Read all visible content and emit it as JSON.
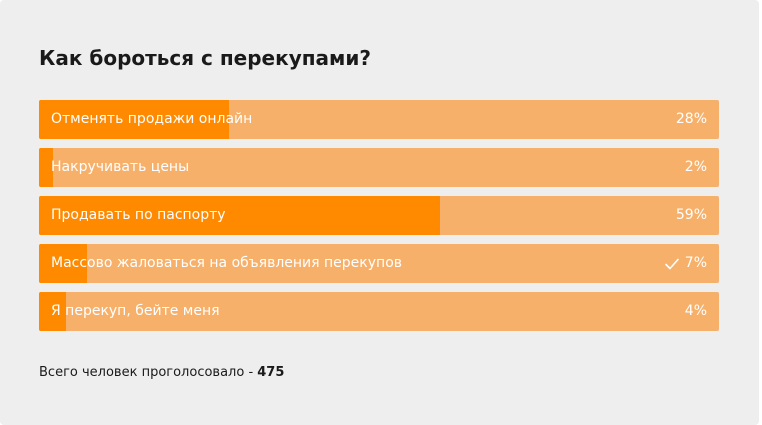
{
  "poll": {
    "title": "Как бороться с перекупами?",
    "options": [
      {
        "label": "Отменять продажи онлайн",
        "percent_text": "28%",
        "fill_fraction": 0.28,
        "selected": false
      },
      {
        "label": "Накручивать цены",
        "percent_text": "2%",
        "fill_fraction": 0.02,
        "selected": false
      },
      {
        "label": "Продавать по паспорту",
        "percent_text": "59%",
        "fill_fraction": 0.59,
        "selected": false
      },
      {
        "label": "Массово жаловаться на объявления перекупов",
        "percent_text": "7%",
        "fill_fraction": 0.07,
        "selected": true
      },
      {
        "label": "Я перекуп, бейте меня",
        "percent_text": "4%",
        "fill_fraction": 0.04,
        "selected": false
      }
    ],
    "footer": {
      "label": "Всего человек проголосовало - ",
      "count": "475"
    }
  },
  "colors": {
    "panel_bg": "#eeeeee",
    "bar_bg": "#f6b06a",
    "bar_fill": "#ff8a00",
    "bar_text": "#ffffff"
  },
  "icons": {
    "selected_marker": "check-icon"
  }
}
